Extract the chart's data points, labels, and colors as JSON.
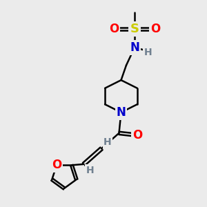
{
  "bg_color": "#ebebeb",
  "bond_color": "#000000",
  "N_color": "#0000cc",
  "O_color": "#ff0000",
  "S_color": "#cccc00",
  "H_color": "#708090",
  "bond_width": 1.8,
  "figsize": [
    3.0,
    3.0
  ],
  "dpi": 100,
  "xlim": [
    0,
    10
  ],
  "ylim": [
    0,
    10
  ]
}
